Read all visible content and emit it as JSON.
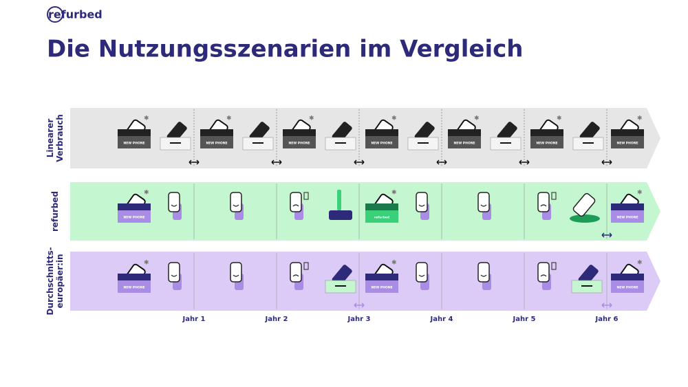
{
  "header": {
    "logo": "refurbed",
    "title": "Die Nutzungsszenarien im Vergleich"
  },
  "rows": [
    {
      "label": [
        "Linearer",
        "Verbrauch"
      ]
    },
    {
      "label": [
        "refurbed"
      ]
    },
    {
      "label": [
        "Durchschnitts-",
        "europäer:in"
      ]
    }
  ],
  "years": [
    "Jahr 1",
    "Jahr 2",
    "Jahr 3",
    "Jahr 4",
    "Jahr 5",
    "Jahr 6"
  ],
  "box_label": "NEW PHONE",
  "box_brand": "refurbed"
}
